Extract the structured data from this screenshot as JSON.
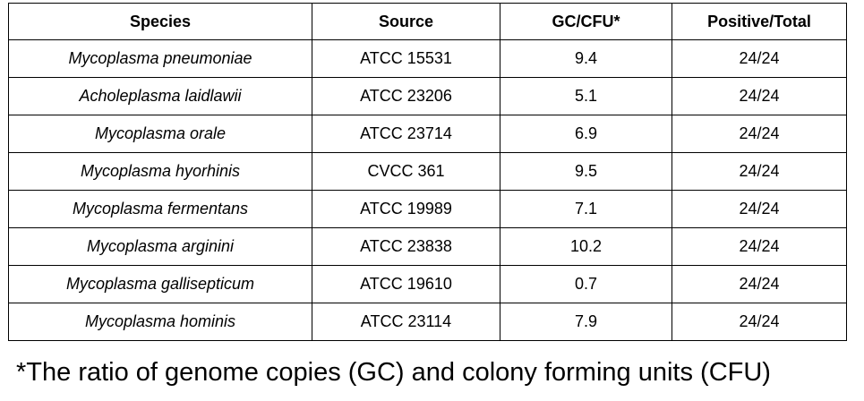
{
  "table": {
    "header": [
      "Species",
      "Source",
      "GC/CFU*",
      "Positive/Total"
    ],
    "rows": [
      [
        "Mycoplasma pneumoniae",
        "ATCC 15531",
        "9.4",
        "24/24"
      ],
      [
        "Acholeplasma laidlawii",
        "ATCC 23206",
        "5.1",
        "24/24"
      ],
      [
        "Mycoplasma orale",
        "ATCC 23714",
        "6.9",
        "24/24"
      ],
      [
        "Mycoplasma hyorhinis",
        "CVCC 361",
        "9.5",
        "24/24"
      ],
      [
        "Mycoplasma fermentans",
        "ATCC 19989",
        "7.1",
        "24/24"
      ],
      [
        "Mycoplasma arginini",
        "ATCC 23838",
        "10.2",
        "24/24"
      ],
      [
        "Mycoplasma gallisepticum",
        "ATCC 19610",
        "0.7",
        "24/24"
      ],
      [
        "Mycoplasma hominis",
        "ATCC 23114",
        "7.9",
        "24/24"
      ]
    ]
  },
  "footnote": "*The ratio of genome copies (GC) and colony forming units (CFU)"
}
